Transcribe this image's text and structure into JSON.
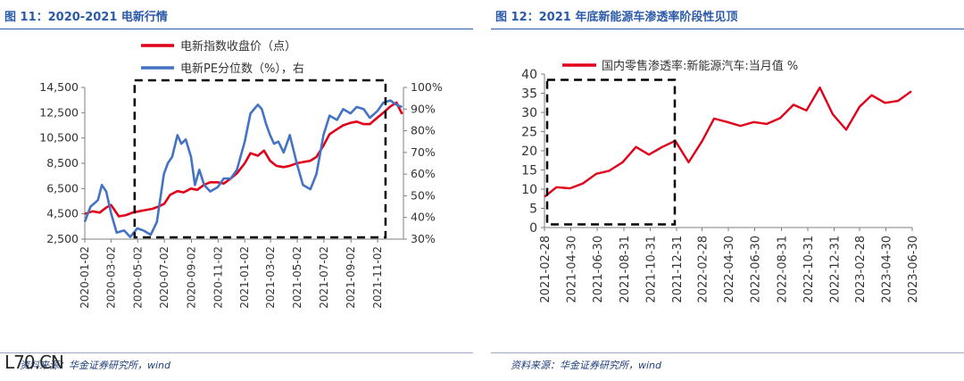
{
  "charts": [
    {
      "figure_title": "图 11：2020-2021 电新行情",
      "source": "资料来源：华金证券研究所，wind",
      "chart_data": {
        "type": "line",
        "y_left": {
          "ticks": [
            "14,500",
            "12,500",
            "10,500",
            "8,500",
            "6,500",
            "4,500",
            "2,500"
          ],
          "range": [
            2500,
            14500
          ]
        },
        "y_right": {
          "ticks": [
            "100%",
            "90%",
            "80%",
            "70%",
            "60%",
            "50%",
            "40%",
            "30%"
          ],
          "range": [
            30,
            100
          ]
        },
        "x_ticks": [
          "2020-01-02",
          "2020-03-02",
          "2020-05-02",
          "2020-07-02",
          "2020-09-02",
          "2020-11-02",
          "2021-01-02",
          "2021-03-02",
          "2021-05-02",
          "2021-07-02",
          "2021-09-02",
          "2021-11-02"
        ],
        "grid": false,
        "legend_position": "top",
        "series": [
          {
            "name": "电新指数收盘价（点）",
            "axis": "left",
            "color": "#e1001a",
            "x": [
              "2020-01-02",
              "2020-01-20",
              "2020-02-05",
              "2020-02-20",
              "2020-03-02",
              "2020-03-20",
              "2020-04-05",
              "2020-04-20",
              "2020-05-05",
              "2020-05-20",
              "2020-06-05",
              "2020-06-20",
              "2020-07-02",
              "2020-07-15",
              "2020-08-01",
              "2020-08-15",
              "2020-09-01",
              "2020-09-15",
              "2020-10-01",
              "2020-10-15",
              "2020-11-01",
              "2020-11-15",
              "2020-12-01",
              "2020-12-15",
              "2021-01-02",
              "2021-01-15",
              "2021-02-01",
              "2021-02-15",
              "2021-03-01",
              "2021-03-15",
              "2021-04-01",
              "2021-04-15",
              "2021-05-01",
              "2021-05-15",
              "2021-06-01",
              "2021-06-15",
              "2021-07-01",
              "2021-07-15",
              "2021-08-01",
              "2021-08-15",
              "2021-09-01",
              "2021-09-15",
              "2021-10-01",
              "2021-10-15",
              "2021-11-01",
              "2021-11-15",
              "2021-12-01",
              "2021-12-15",
              "2021-12-28"
            ],
            "values": [
              4500,
              4700,
              4600,
              5000,
              5200,
              4300,
              4400,
              4600,
              4700,
              4800,
              4900,
              5100,
              5300,
              6000,
              6300,
              6200,
              6500,
              6400,
              6800,
              7000,
              7000,
              6900,
              7300,
              7700,
              8500,
              9300,
              9100,
              9500,
              8700,
              8300,
              8200,
              8300,
              8500,
              8600,
              8700,
              9000,
              9900,
              10800,
              11200,
              11500,
              11700,
              11800,
              11600,
              11600,
              12100,
              12500,
              13000,
              13300,
              12400
            ]
          },
          {
            "name": "电新PE分位数（%），右",
            "axis": "right",
            "color": "#4472c4",
            "x": [
              "2020-01-02",
              "2020-01-15",
              "2020-02-01",
              "2020-02-10",
              "2020-02-20",
              "2020-03-02",
              "2020-03-15",
              "2020-04-01",
              "2020-04-15",
              "2020-05-01",
              "2020-05-15",
              "2020-06-01",
              "2020-06-15",
              "2020-07-01",
              "2020-07-10",
              "2020-07-20",
              "2020-08-01",
              "2020-08-10",
              "2020-08-20",
              "2020-09-01",
              "2020-09-10",
              "2020-09-20",
              "2020-10-01",
              "2020-10-15",
              "2020-11-01",
              "2020-11-15",
              "2020-12-01",
              "2020-12-15",
              "2021-01-02",
              "2021-01-15",
              "2021-02-01",
              "2021-02-10",
              "2021-02-20",
              "2021-03-01",
              "2021-03-10",
              "2021-03-20",
              "2021-04-01",
              "2021-04-15",
              "2021-05-01",
              "2021-05-15",
              "2021-06-01",
              "2021-06-15",
              "2021-07-01",
              "2021-07-15",
              "2021-08-01",
              "2021-08-15",
              "2021-09-01",
              "2021-09-15",
              "2021-10-01",
              "2021-10-15",
              "2021-11-01",
              "2021-11-15",
              "2021-12-01",
              "2021-12-15",
              "2021-12-28"
            ],
            "values": [
              38,
              45,
              48,
              55,
              52,
              42,
              33,
              34,
              31,
              35,
              34,
              32,
              38,
              60,
              65,
              68,
              78,
              74,
              76,
              68,
              55,
              62,
              55,
              52,
              54,
              58,
              58,
              62,
              75,
              88,
              92,
              90,
              83,
              78,
              74,
              75,
              70,
              78,
              65,
              55,
              53,
              60,
              78,
              87,
              85,
              90,
              88,
              91,
              90,
              86,
              89,
              93,
              94,
              92,
              91
            ]
          }
        ],
        "annotation": {
          "type": "dashed-box",
          "x_range": [
            "2020-04-25",
            "2021-11-20"
          ],
          "y_range": [
            2500,
            14500
          ]
        }
      }
    },
    {
      "figure_title": "图 12：2021 年底新能源车渗透率阶段性见顶",
      "source": "资料来源：华金证券研究所，wind",
      "chart_data": {
        "type": "line",
        "y": {
          "ticks": [
            "40",
            "35",
            "30",
            "25",
            "20",
            "15",
            "10",
            "5",
            "0"
          ],
          "range": [
            0,
            40
          ]
        },
        "x_ticks": [
          "2021-02-28",
          "2021-04-30",
          "2021-06-30",
          "2021-08-31",
          "2021-10-31",
          "2021-12-31",
          "2022-02-28",
          "2022-04-30",
          "2022-06-30",
          "2022-08-31",
          "2022-10-31",
          "2022-12-31",
          "2023-02-28",
          "2023-04-30",
          "2023-06-30"
        ],
        "grid": false,
        "legend_position": "top",
        "series": [
          {
            "name": "国内零售渗透率:新能源汽车:当月值 %",
            "color": "#e1001a",
            "x": [
              "2021-02",
              "2021-03",
              "2021-04",
              "2021-05",
              "2021-06",
              "2021-07",
              "2021-08",
              "2021-09",
              "2021-10",
              "2021-11",
              "2021-12",
              "2022-01",
              "2022-02",
              "2022-03",
              "2022-04",
              "2022-05",
              "2022-06",
              "2022-07",
              "2022-08",
              "2022-09",
              "2022-10",
              "2022-11",
              "2022-12",
              "2023-01",
              "2023-02",
              "2023-03",
              "2023-04",
              "2023-05",
              "2023-06"
            ],
            "values": [
              8.0,
              10.5,
              10.2,
              11.5,
              14.0,
              14.8,
              17.0,
              21.0,
              19.0,
              21.0,
              22.6,
              17.0,
              22.5,
              28.4,
              27.5,
              26.5,
              27.5,
              27.0,
              28.5,
              32.0,
              30.5,
              36.5,
              29.5,
              25.5,
              31.5,
              34.5,
              32.5,
              33.0,
              35.5
            ]
          }
        ],
        "annotation": {
          "type": "dashed-box",
          "x_range": [
            "2021-02-28",
            "2021-12-31"
          ],
          "y_range": [
            0.8,
            38.5
          ]
        }
      }
    }
  ],
  "watermark": "L70.CN"
}
